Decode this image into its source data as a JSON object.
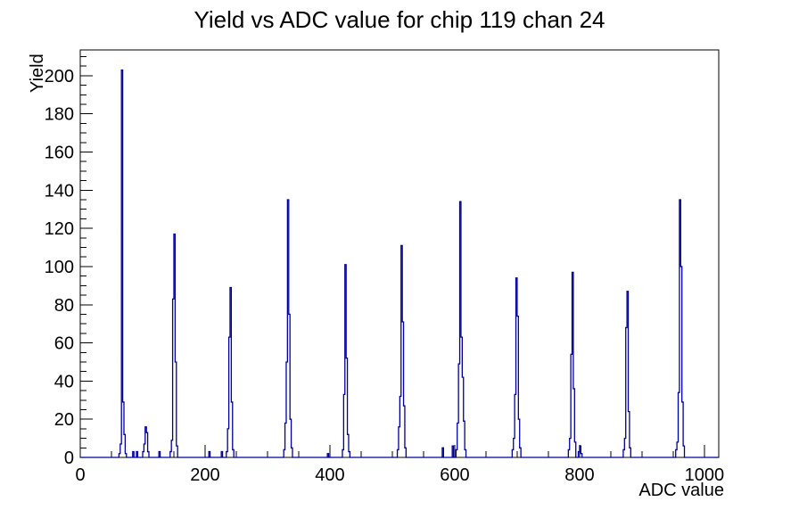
{
  "window": {
    "background": "#ffffff"
  },
  "chart_data": {
    "type": "histogram",
    "title": "Yield vs ADC value for chip 119 chan 24",
    "xlabel": "ADC value",
    "ylabel": "Yield",
    "xlim": [
      0,
      1023
    ],
    "ylim": [
      0,
      213.5
    ],
    "x_major_ticks": [
      0,
      200,
      400,
      600,
      800,
      1000
    ],
    "x_minor_step": 50,
    "y_major_ticks": [
      0,
      20,
      40,
      60,
      80,
      100,
      120,
      140,
      160,
      180,
      200
    ],
    "y_minor_step": 5,
    "grid": false,
    "legend": "none",
    "line_color": "#00009a",
    "frame_color": "#000000",
    "bin_width": 2,
    "bins": [
      [
        62,
        2
      ],
      [
        64,
        7
      ],
      [
        66,
        203
      ],
      [
        68,
        29
      ],
      [
        70,
        12
      ],
      [
        72,
        2
      ],
      [
        84,
        3
      ],
      [
        90,
        3
      ],
      [
        100,
        3
      ],
      [
        102,
        7
      ],
      [
        104,
        16
      ],
      [
        106,
        13
      ],
      [
        108,
        3
      ],
      [
        126,
        3
      ],
      [
        144,
        3
      ],
      [
        146,
        9
      ],
      [
        148,
        83
      ],
      [
        150,
        117
      ],
      [
        152,
        50
      ],
      [
        154,
        6
      ],
      [
        206,
        3
      ],
      [
        226,
        3
      ],
      [
        234,
        3
      ],
      [
        236,
        15
      ],
      [
        238,
        63
      ],
      [
        240,
        89
      ],
      [
        242,
        29
      ],
      [
        244,
        4
      ],
      [
        326,
        4
      ],
      [
        328,
        18
      ],
      [
        330,
        50
      ],
      [
        332,
        135
      ],
      [
        334,
        75
      ],
      [
        336,
        20
      ],
      [
        338,
        5
      ],
      [
        396,
        2
      ],
      [
        420,
        4
      ],
      [
        422,
        33
      ],
      [
        424,
        101
      ],
      [
        426,
        52
      ],
      [
        428,
        12
      ],
      [
        430,
        3
      ],
      [
        508,
        4
      ],
      [
        510,
        16
      ],
      [
        512,
        32
      ],
      [
        514,
        111
      ],
      [
        516,
        71
      ],
      [
        518,
        27
      ],
      [
        520,
        5
      ],
      [
        580,
        5
      ],
      [
        596,
        6
      ],
      [
        602,
        4
      ],
      [
        604,
        18
      ],
      [
        606,
        49
      ],
      [
        608,
        134
      ],
      [
        610,
        63
      ],
      [
        612,
        42
      ],
      [
        614,
        19
      ],
      [
        616,
        4
      ],
      [
        692,
        4
      ],
      [
        694,
        10
      ],
      [
        696,
        33
      ],
      [
        698,
        94
      ],
      [
        700,
        74
      ],
      [
        702,
        20
      ],
      [
        704,
        5
      ],
      [
        782,
        4
      ],
      [
        784,
        10
      ],
      [
        786,
        54
      ],
      [
        788,
        97
      ],
      [
        790,
        36
      ],
      [
        792,
        8
      ],
      [
        798,
        3
      ],
      [
        800,
        6
      ],
      [
        802,
        2
      ],
      [
        870,
        4
      ],
      [
        872,
        10
      ],
      [
        874,
        68
      ],
      [
        876,
        87
      ],
      [
        878,
        24
      ],
      [
        880,
        5
      ],
      [
        954,
        4
      ],
      [
        956,
        8
      ],
      [
        958,
        34
      ],
      [
        960,
        135
      ],
      [
        962,
        100
      ],
      [
        964,
        29
      ],
      [
        966,
        6
      ]
    ]
  }
}
